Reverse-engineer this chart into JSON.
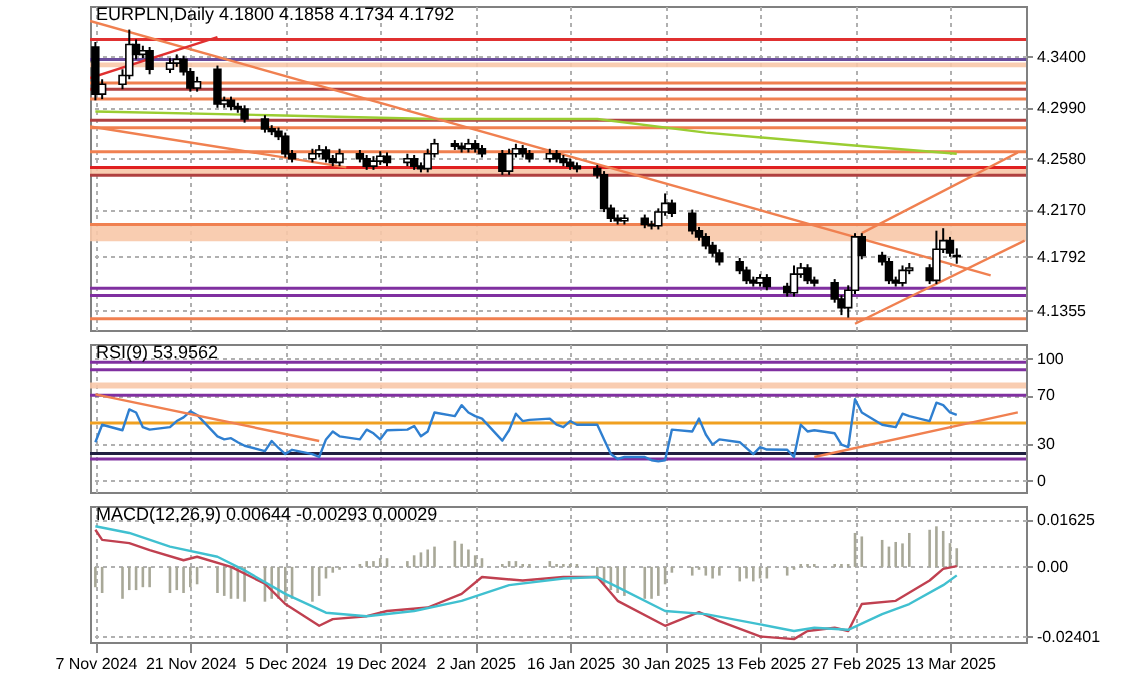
{
  "chart_data": [
    {
      "type": "candlestick",
      "title": "EURPLN,Daily 4.1800 4.1858 4.1734 4.1792",
      "tick_labels": "y",
      "grid": true,
      "x": [
        "2024-11-07",
        "2024-11-08",
        "2024-11-11",
        "2024-11-12",
        "2024-11-13",
        "2024-11-14",
        "2024-11-15",
        "2024-11-18",
        "2024-11-19",
        "2024-11-20",
        "2024-11-21",
        "2024-11-22",
        "2024-11-25",
        "2024-11-26",
        "2024-11-27",
        "2024-11-28",
        "2024-11-29",
        "2024-12-02",
        "2024-12-03",
        "2024-12-04",
        "2024-12-05",
        "2024-12-06",
        "2024-12-09",
        "2024-12-10",
        "2024-12-11",
        "2024-12-12",
        "2024-12-13",
        "2024-12-16",
        "2024-12-17",
        "2024-12-18",
        "2024-12-19",
        "2024-12-20",
        "2024-12-23",
        "2024-12-24",
        "2024-12-25",
        "2024-12-26",
        "2024-12-27",
        "2024-12-30",
        "2024-12-31",
        "2025-01-01",
        "2025-01-02",
        "2025-01-03",
        "2025-01-06",
        "2025-01-07",
        "2025-01-08",
        "2025-01-09",
        "2025-01-10",
        "2025-01-13",
        "2025-01-14",
        "2025-01-15",
        "2025-01-16",
        "2025-01-17",
        "2025-01-20",
        "2025-01-21",
        "2025-01-22",
        "2025-01-23",
        "2025-01-24",
        "2025-01-27",
        "2025-01-28",
        "2025-01-29",
        "2025-01-30",
        "2025-01-31",
        "2025-02-03",
        "2025-02-04",
        "2025-02-05",
        "2025-02-06",
        "2025-02-07",
        "2025-02-10",
        "2025-02-11",
        "2025-02-12",
        "2025-02-13",
        "2025-02-14",
        "2025-02-17",
        "2025-02-18",
        "2025-02-19",
        "2025-02-20",
        "2025-02-21",
        "2025-02-24",
        "2025-02-25",
        "2025-02-26",
        "2025-02-27",
        "2025-02-28",
        "2025-03-03",
        "2025-03-04",
        "2025-03-05",
        "2025-03-06",
        "2025-03-07",
        "2025-03-10",
        "2025-03-11",
        "2025-03-12",
        "2025-03-13",
        "2025-03-14"
      ],
      "ohlc": [
        [
          4.348,
          4.352,
          4.305,
          4.31
        ],
        [
          4.31,
          4.322,
          4.306,
          4.318
        ],
        [
          4.318,
          4.33,
          4.314,
          4.325
        ],
        [
          4.325,
          4.362,
          4.322,
          4.35
        ],
        [
          4.35,
          4.354,
          4.338,
          4.342
        ],
        [
          4.342,
          4.349,
          4.339,
          4.345
        ],
        [
          4.345,
          4.348,
          4.326,
          4.33
        ],
        [
          4.33,
          4.339,
          4.327,
          4.335
        ],
        [
          4.335,
          4.342,
          4.332,
          4.338
        ],
        [
          4.338,
          4.341,
          4.325,
          4.328
        ],
        [
          4.328,
          4.331,
          4.312,
          4.315
        ],
        [
          4.315,
          4.324,
          4.312,
          4.32
        ],
        [
          4.33,
          4.333,
          4.299,
          4.302
        ],
        [
          4.302,
          4.308,
          4.299,
          4.305
        ],
        [
          4.305,
          4.308,
          4.297,
          4.3
        ],
        [
          4.3,
          4.303,
          4.295,
          4.298
        ],
        [
          4.298,
          4.301,
          4.287,
          4.29
        ],
        [
          4.29,
          4.293,
          4.279,
          4.282
        ],
        [
          4.282,
          4.285,
          4.277,
          4.28
        ],
        [
          4.28,
          4.283,
          4.273,
          4.276
        ],
        [
          4.276,
          4.279,
          4.259,
          4.262
        ],
        [
          4.262,
          4.265,
          4.255,
          4.258
        ],
        [
          4.258,
          4.266,
          4.255,
          4.262
        ],
        [
          4.262,
          4.269,
          4.259,
          4.265
        ],
        [
          4.265,
          4.268,
          4.255,
          4.258
        ],
        [
          4.258,
          4.261,
          4.252,
          4.255
        ],
        [
          4.255,
          4.266,
          4.252,
          4.262
        ],
        [
          4.262,
          4.265,
          4.255,
          4.258
        ],
        [
          4.258,
          4.261,
          4.249,
          4.252
        ],
        [
          4.252,
          4.26,
          4.249,
          4.256
        ],
        [
          4.256,
          4.264,
          4.253,
          4.26
        ],
        [
          4.26,
          4.263,
          4.252,
          4.255
        ],
        [
          4.255,
          4.262,
          4.252,
          4.258
        ],
        [
          4.258,
          4.261,
          4.249,
          4.252
        ],
        [
          4.252,
          4.255,
          4.247,
          4.25
        ],
        [
          4.25,
          4.266,
          4.247,
          4.262
        ],
        [
          4.262,
          4.274,
          4.259,
          4.27
        ],
        [
          4.27,
          4.273,
          4.265,
          4.268
        ],
        [
          4.268,
          4.271,
          4.263,
          4.266
        ],
        [
          4.266,
          4.274,
          4.263,
          4.27
        ],
        [
          4.27,
          4.273,
          4.263,
          4.266
        ],
        [
          4.266,
          4.269,
          4.259,
          4.262
        ],
        [
          4.262,
          4.265,
          4.245,
          4.248
        ],
        [
          4.248,
          4.266,
          4.245,
          4.262
        ],
        [
          4.262,
          4.27,
          4.259,
          4.266
        ],
        [
          4.266,
          4.269,
          4.259,
          4.262
        ],
        [
          4.262,
          4.265,
          4.255,
          4.258
        ],
        [
          4.258,
          4.266,
          4.255,
          4.262
        ],
        [
          4.262,
          4.265,
          4.255,
          4.258
        ],
        [
          4.258,
          4.261,
          4.252,
          4.255
        ],
        [
          4.255,
          4.258,
          4.249,
          4.252
        ],
        [
          4.252,
          4.255,
          4.247,
          4.25
        ],
        [
          4.25,
          4.253,
          4.242,
          4.245
        ],
        [
          4.245,
          4.248,
          4.215,
          4.218
        ],
        [
          4.218,
          4.221,
          4.207,
          4.21
        ],
        [
          4.21,
          4.213,
          4.205,
          4.208
        ],
        [
          4.208,
          4.213,
          4.205,
          4.21
        ],
        [
          4.21,
          4.213,
          4.202,
          4.205
        ],
        [
          4.205,
          4.208,
          4.201,
          4.204
        ],
        [
          4.204,
          4.218,
          4.201,
          4.215
        ],
        [
          4.215,
          4.23,
          4.212,
          4.222
        ],
        [
          4.222,
          4.225,
          4.211,
          4.214
        ],
        [
          4.214,
          4.217,
          4.197,
          4.2
        ],
        [
          4.2,
          4.203,
          4.192,
          4.195
        ],
        [
          4.195,
          4.198,
          4.185,
          4.188
        ],
        [
          4.188,
          4.191,
          4.179,
          4.182
        ],
        [
          4.182,
          4.185,
          4.172,
          4.175
        ],
        [
          4.175,
          4.178,
          4.165,
          4.168
        ],
        [
          4.168,
          4.171,
          4.157,
          4.16
        ],
        [
          4.16,
          4.163,
          4.155,
          4.158
        ],
        [
          4.158,
          4.165,
          4.155,
          4.162
        ],
        [
          4.162,
          4.165,
          4.152,
          4.155
        ],
        [
          4.155,
          4.158,
          4.147,
          4.15
        ],
        [
          4.15,
          4.172,
          4.147,
          4.165
        ],
        [
          4.165,
          4.174,
          4.162,
          4.17
        ],
        [
          4.17,
          4.173,
          4.157,
          4.16
        ],
        [
          4.16,
          4.163,
          4.155,
          4.158
        ],
        [
          4.158,
          4.161,
          4.142,
          4.145
        ],
        [
          4.145,
          4.148,
          4.132,
          4.138
        ],
        [
          4.138,
          4.156,
          4.13,
          4.152
        ],
        [
          4.152,
          4.198,
          4.149,
          4.195
        ],
        [
          4.195,
          4.198,
          4.177,
          4.18
        ],
        [
          4.18,
          4.183,
          4.172,
          4.175
        ],
        [
          4.175,
          4.178,
          4.157,
          4.16
        ],
        [
          4.16,
          4.163,
          4.155,
          4.158
        ],
        [
          4.158,
          4.172,
          4.155,
          4.168
        ],
        [
          4.168,
          4.174,
          4.165,
          4.17
        ],
        [
          4.17,
          4.173,
          4.157,
          4.16
        ],
        [
          4.16,
          4.2,
          4.157,
          4.185
        ],
        [
          4.185,
          4.202,
          4.182,
          4.192
        ],
        [
          4.192,
          4.195,
          4.179,
          4.182
        ],
        [
          4.18,
          4.1858,
          4.1734,
          4.1792
        ]
      ],
      "series": [
        {
          "type": "line",
          "color": "#9acd32",
          "x": [
            "2024-11-07",
            "2024-12-03",
            "2024-12-27",
            "2025-01-20",
            "2025-02-05",
            "2025-02-26",
            "2025-03-14"
          ],
          "values": [
            4.296,
            4.293,
            4.29,
            4.29,
            4.279,
            4.269,
            4.262
          ]
        },
        {
          "type": "line",
          "color": "#f08050",
          "x": [
            "2024-11-06T05:00",
            "2025-03-19"
          ],
          "values": [
            4.369,
            4.164
          ]
        },
        {
          "type": "line",
          "color": "#f08050",
          "x": [
            "2024-11-06T05:00",
            "2024-12-14"
          ],
          "values": [
            4.284,
            4.251
          ]
        },
        {
          "type": "line",
          "color": "#e03030",
          "x": [
            "2024-11-06T05:00",
            "2024-11-25"
          ],
          "values": [
            4.323,
            4.356
          ]
        },
        {
          "type": "line",
          "color": "#f08050",
          "x": [
            "2025-02-28",
            "2025-03-23"
          ],
          "values": [
            4.198,
            4.263
          ]
        },
        {
          "type": "line",
          "color": "#f08050",
          "x": [
            "2025-02-27",
            "2025-03-24"
          ],
          "values": [
            4.125,
            4.192
          ]
        }
      ],
      "bands": [
        {
          "axis": "y",
          "from": 4.3317,
          "to": 4.3355,
          "color": "#f8c8a8"
        },
        {
          "axis": "y",
          "from": 4.2445,
          "to": 4.251,
          "color": "#f8c8a8"
        },
        {
          "axis": "y",
          "from": 4.1915,
          "to": 4.205,
          "color": "#f8c8a8"
        }
      ],
      "ref_lines": [
        {
          "axis": "y",
          "value": 4.354,
          "color": "#e03030"
        },
        {
          "axis": "y",
          "value": 4.338,
          "color": "#6a4c9c"
        },
        {
          "axis": "y",
          "value": 4.319,
          "color": "#f08050"
        },
        {
          "axis": "y",
          "value": 4.314,
          "color": "#b04040"
        },
        {
          "axis": "y",
          "value": 4.306,
          "color": "#f08050"
        },
        {
          "axis": "y",
          "value": 4.289,
          "color": "#b04040"
        },
        {
          "axis": "y",
          "value": 4.283,
          "color": "#f08050"
        },
        {
          "axis": "y",
          "value": 4.2635,
          "color": "#f08050"
        },
        {
          "axis": "y",
          "value": 4.251,
          "color": "#e02020"
        },
        {
          "axis": "y",
          "value": 4.2446,
          "color": "#b04040"
        },
        {
          "axis": "y",
          "value": 4.205,
          "color": "#f08050"
        },
        {
          "axis": "y",
          "value": 4.1537,
          "color": "#8030a0"
        },
        {
          "axis": "y",
          "value": 4.1477,
          "color": "#8030a0"
        },
        {
          "axis": "y",
          "value": 4.129,
          "color": "#f08050"
        }
      ],
      "xlim": [
        "2024-11-06T05:00",
        "2025-03-24T05:00"
      ],
      "xticks": [
        {
          "value": "2024-11-07",
          "label": null
        },
        {
          "value": "2024-11-21",
          "label": null
        },
        {
          "value": "2024-12-05",
          "label": null
        },
        {
          "value": "2024-12-19",
          "label": null
        },
        {
          "value": "2025-01-02",
          "label": null
        },
        {
          "value": "2025-01-16",
          "label": null
        },
        {
          "value": "2025-01-30",
          "label": null
        },
        {
          "value": "2025-02-13",
          "label": null
        },
        {
          "value": "2025-02-27",
          "label": null
        },
        {
          "value": "2025-03-13",
          "label": null
        }
      ],
      "ylim": [
        4.12,
        4.381
      ],
      "yticks": [
        4.1355,
        4.1792,
        {
          "value": 4.217,
          "label": "4.2170"
        },
        {
          "value": 4.258,
          "label": "4.2580"
        },
        {
          "value": 4.299,
          "label": "4.2990"
        },
        {
          "value": 4.34,
          "label": "4.3400"
        }
      ]
    },
    {
      "type": "line",
      "title": "RSI(9) 53.9562",
      "tick_labels": "y",
      "grid": true,
      "x": [
        "2024-11-07",
        "2024-11-08",
        "2024-11-11",
        "2024-11-12",
        "2024-11-13",
        "2024-11-14",
        "2024-11-15",
        "2024-11-18",
        "2024-11-19",
        "2024-11-20",
        "2024-11-21",
        "2024-11-22",
        "2024-11-25",
        "2024-11-26",
        "2024-11-27",
        "2024-11-28",
        "2024-11-29",
        "2024-12-02",
        "2024-12-03",
        "2024-12-04",
        "2024-12-05",
        "2024-12-06",
        "2024-12-09",
        "2024-12-10",
        "2024-12-11",
        "2024-12-12",
        "2024-12-13",
        "2024-12-16",
        "2024-12-17",
        "2024-12-18",
        "2024-12-19",
        "2024-12-20",
        "2024-12-23",
        "2024-12-24",
        "2024-12-25",
        "2024-12-26",
        "2024-12-27",
        "2024-12-30",
        "2024-12-31",
        "2025-01-01",
        "2025-01-02",
        "2025-01-03",
        "2025-01-06",
        "2025-01-07",
        "2025-01-08",
        "2025-01-09",
        "2025-01-10",
        "2025-01-13",
        "2025-01-14",
        "2025-01-15",
        "2025-01-16",
        "2025-01-17",
        "2025-01-20",
        "2025-01-21",
        "2025-01-22",
        "2025-01-23",
        "2025-01-24",
        "2025-01-27",
        "2025-01-28",
        "2025-01-29",
        "2025-01-30",
        "2025-01-31",
        "2025-02-03",
        "2025-02-04",
        "2025-02-05",
        "2025-02-06",
        "2025-02-07",
        "2025-02-10",
        "2025-02-11",
        "2025-02-12",
        "2025-02-13",
        "2025-02-14",
        "2025-02-17",
        "2025-02-18",
        "2025-02-19",
        "2025-02-20",
        "2025-02-21",
        "2025-02-24",
        "2025-02-25",
        "2025-02-26",
        "2025-02-27",
        "2025-02-28",
        "2025-03-03",
        "2025-03-04",
        "2025-03-05",
        "2025-03-06",
        "2025-03-07",
        "2025-03-10",
        "2025-03-11",
        "2025-03-12",
        "2025-03-13",
        "2025-03-14"
      ],
      "series": [
        {
          "type": "line",
          "color": "#2f7fd0",
          "values": [
            31.7,
            46,
            41.5,
            58.5,
            56,
            44,
            42,
            44,
            49,
            52,
            57,
            54,
            36.5,
            34,
            35,
            31.7,
            28.8,
            24.4,
            32.7,
            27,
            22,
            25.5,
            22,
            19.6,
            34,
            40.5,
            36.5,
            34,
            42,
            39,
            34,
            41.5,
            42,
            45,
            36.5,
            40.5,
            56,
            53,
            62,
            56,
            53,
            51,
            33,
            41.5,
            55,
            49,
            50,
            51,
            46,
            44,
            49,
            46,
            46,
            34,
            22,
            18,
            19.6,
            19.6,
            17,
            16,
            17,
            42,
            40.5,
            51,
            38,
            29.7,
            34,
            31.7,
            26.8,
            22,
            27.7,
            25.7,
            25.5,
            19.6,
            46,
            40.5,
            41.5,
            39,
            29.7,
            27.7,
            66.8,
            56,
            46,
            45,
            44,
            55,
            53,
            49,
            64,
            62,
            56,
            53.9562
          ]
        },
        {
          "type": "line",
          "color": "#f08050",
          "x": [
            "2024-11-07",
            "2024-12-10"
          ],
          "values": [
            70.8,
            32.7
          ]
        },
        {
          "type": "line",
          "color": "#f08050",
          "x": [
            "2025-02-21",
            "2025-03-23"
          ],
          "values": [
            19.6,
            56.1
          ]
        }
      ],
      "bands": [
        {
          "axis": "y",
          "from": 75.7,
          "to": 80.6,
          "color": "#f8c8a8"
        }
      ],
      "ref_lines": [
        {
          "axis": "y",
          "value": 97,
          "color": "#8030a0"
        },
        {
          "axis": "y",
          "value": 91,
          "color": "#8030a0"
        },
        {
          "axis": "y",
          "value": 70,
          "color": "#8030a0"
        },
        {
          "axis": "y",
          "value": 47.4,
          "color": "#f0a020"
        },
        {
          "axis": "y",
          "value": 22.5,
          "color": "#202040"
        },
        {
          "axis": "y",
          "value": 18,
          "color": "#8030a0"
        }
      ],
      "xlim": [
        "2024-11-06T05:00",
        "2025-03-24T05:00"
      ],
      "xticks": [
        {
          "value": "2024-11-07",
          "label": null
        },
        {
          "value": "2024-11-21",
          "label": null
        },
        {
          "value": "2024-12-05",
          "label": null
        },
        {
          "value": "2024-12-19",
          "label": null
        },
        {
          "value": "2025-01-02",
          "label": null
        },
        {
          "value": "2025-01-16",
          "label": null
        },
        {
          "value": "2025-01-30",
          "label": null
        },
        {
          "value": "2025-02-13",
          "label": null
        },
        {
          "value": "2025-02-27",
          "label": null
        },
        {
          "value": "2025-03-13",
          "label": null
        }
      ],
      "ylim": [
        -9,
        112
      ],
      "yticks": [
        0,
        30,
        70,
        100
      ]
    },
    {
      "type": "bar",
      "title": "MACD(12,26,9) 0.00644 -0.00293 0.00029",
      "grid": true,
      "x": [
        "2024-11-07",
        "2024-11-08",
        "2024-11-11",
        "2024-11-12",
        "2024-11-13",
        "2024-11-14",
        "2024-11-15",
        "2024-11-18",
        "2024-11-19",
        "2024-11-20",
        "2024-11-21",
        "2024-11-22",
        "2024-11-25",
        "2024-11-26",
        "2024-11-27",
        "2024-11-28",
        "2024-11-29",
        "2024-12-02",
        "2024-12-03",
        "2024-12-04",
        "2024-12-05",
        "2024-12-06",
        "2024-12-09",
        "2024-12-10",
        "2024-12-11",
        "2024-12-12",
        "2024-12-13",
        "2024-12-16",
        "2024-12-17",
        "2024-12-18",
        "2024-12-19",
        "2024-12-20",
        "2024-12-23",
        "2024-12-24",
        "2024-12-25",
        "2024-12-26",
        "2024-12-27",
        "2024-12-30",
        "2024-12-31",
        "2025-01-01",
        "2025-01-02",
        "2025-01-03",
        "2025-01-06",
        "2025-01-07",
        "2025-01-08",
        "2025-01-09",
        "2025-01-10",
        "2025-01-13",
        "2025-01-14",
        "2025-01-15",
        "2025-01-16",
        "2025-01-17",
        "2025-01-20",
        "2025-01-21",
        "2025-01-22",
        "2025-01-23",
        "2025-01-24",
        "2025-01-27",
        "2025-01-28",
        "2025-01-29",
        "2025-01-30",
        "2025-01-31",
        "2025-02-03",
        "2025-02-04",
        "2025-02-05",
        "2025-02-06",
        "2025-02-07",
        "2025-02-10",
        "2025-02-11",
        "2025-02-12",
        "2025-02-13",
        "2025-02-14",
        "2025-02-17",
        "2025-02-18",
        "2025-02-19",
        "2025-02-20",
        "2025-02-21",
        "2025-02-24",
        "2025-02-25",
        "2025-02-26",
        "2025-02-27",
        "2025-02-28",
        "2025-03-03",
        "2025-03-04",
        "2025-03-05",
        "2025-03-06",
        "2025-03-07",
        "2025-03-10",
        "2025-03-11",
        "2025-03-12",
        "2025-03-13",
        "2025-03-14"
      ],
      "series": [
        {
          "type": "bar",
          "color": "#a8a898",
          "values": [
            -0.007,
            -0.009,
            -0.011,
            -0.008,
            -0.008,
            -0.007,
            -0.007,
            -0.009,
            -0.008,
            -0.009,
            -0.007,
            -0.006,
            -0.009,
            -0.01,
            -0.011,
            -0.011,
            -0.012,
            -0.012,
            -0.011,
            -0.011,
            -0.012,
            -0.011,
            -0.012,
            -0.01,
            -0.004,
            -0.002,
            -0.001,
            0.001,
            0.002,
            0.002,
            0.003,
            0.003,
            0.002,
            0.004,
            0.005,
            0.006,
            0.007,
            0.009,
            0.008,
            0.006,
            0.004,
            0.003,
            0.001,
            0.002,
            0.002,
            0.001,
            0.001,
            0.002,
            0.001,
            0.001,
            0.001,
            0.001,
            -0.004,
            -0.006,
            -0.008,
            -0.009,
            -0.01,
            -0.011,
            -0.011,
            -0.01,
            -0.006,
            -0.002,
            -0.003,
            -0.001,
            -0.003,
            -0.004,
            -0.003,
            -0.005,
            -0.004,
            -0.005,
            -0.004,
            -0.004,
            -0.003,
            -0.001,
            0.001,
            0.001,
            0.001,
            0.001,
            0.001,
            0.001,
            0.0117,
            0.0105,
            0.0093,
            0.007,
            0.0086,
            0.0081,
            0.0117,
            0.0128,
            0.014,
            0.0124,
            0.0082,
            0.00644
          ]
        },
        {
          "type": "line",
          "color": "#c04050",
          "x": [
            "2024-11-07",
            "2024-11-08",
            "2024-11-12",
            "2024-11-15",
            "2024-11-20",
            "2024-11-22",
            "2024-11-27",
            "2024-12-02",
            "2024-12-05",
            "2024-12-10",
            "2024-12-12",
            "2024-12-17",
            "2024-12-20",
            "2024-12-26",
            "2024-12-31",
            "2025-01-03",
            "2025-01-09",
            "2025-01-15",
            "2025-01-20",
            "2025-01-23",
            "2025-01-30",
            "2025-02-04",
            "2025-02-07",
            "2025-02-13",
            "2025-02-18",
            "2025-02-20",
            "2025-02-24",
            "2025-02-26",
            "2025-02-28",
            "2025-03-05",
            "2025-03-10",
            "2025-03-12",
            "2025-03-14"
          ],
          "values": [
            0.0128,
            0.0093,
            0.0082,
            0.0058,
            0.0023,
            0.0035,
            0.0,
            -0.0058,
            -0.0128,
            -0.0203,
            -0.018,
            -0.017,
            -0.0152,
            -0.014,
            -0.0093,
            -0.0035,
            -0.0047,
            -0.0035,
            -0.0035,
            -0.0117,
            -0.0203,
            -0.0156,
            -0.0187,
            -0.024,
            -0.0249,
            -0.0221,
            -0.021,
            -0.0221,
            -0.0128,
            -0.0117,
            -0.0047,
            -0.0007,
            0.00029
          ]
        },
        {
          "type": "line",
          "color": "#40c0d0",
          "x": [
            "2024-11-07",
            "2024-11-12",
            "2024-11-18",
            "2024-11-25",
            "2024-11-29",
            "2024-12-05",
            "2024-12-11",
            "2024-12-17",
            "2024-12-24",
            "2024-12-31",
            "2025-01-07",
            "2025-01-15",
            "2025-01-20",
            "2025-01-23",
            "2025-01-30",
            "2025-02-05",
            "2025-02-13",
            "2025-02-18",
            "2025-02-21",
            "2025-02-26",
            "2025-03-03",
            "2025-03-07",
            "2025-03-12",
            "2025-03-14"
          ],
          "values": [
            0.014,
            0.0117,
            0.007,
            0.0035,
            -0.0012,
            -0.0093,
            -0.0158,
            -0.017,
            -0.0152,
            -0.0117,
            -0.0063,
            -0.004,
            -0.0035,
            -0.007,
            -0.0152,
            -0.0163,
            -0.0198,
            -0.0221,
            -0.021,
            -0.0217,
            -0.0163,
            -0.0128,
            -0.0063,
            -0.00293
          ]
        }
      ],
      "xlim": [
        "2024-11-06T05:00",
        "2025-03-24T05:00"
      ],
      "xticks": [
        {
          "value": "2024-11-07",
          "label": "7 Nov 2024"
        },
        {
          "value": "2024-11-21",
          "label": "21 Nov 2024"
        },
        {
          "value": "2024-12-05",
          "label": "5 Dec 2024"
        },
        {
          "value": "2024-12-19",
          "label": "19 Dec 2024"
        },
        {
          "value": "2025-01-02",
          "label": "2 Jan 2025"
        },
        {
          "value": "2025-01-16",
          "label": "16 Jan 2025"
        },
        {
          "value": "2025-01-30",
          "label": "30 Jan 2025"
        },
        {
          "value": "2025-02-13",
          "label": "13 Feb 2025"
        },
        {
          "value": "2025-02-27",
          "label": "27 Feb 2025"
        },
        {
          "value": "2025-03-13",
          "label": "13 Mar 2025"
        }
      ],
      "ylim": [
        -0.0259,
        0.021
      ],
      "yticks": [
        0.01625,
        {
          "value": 0,
          "label": "0.00"
        },
        -0.02401
      ]
    }
  ]
}
